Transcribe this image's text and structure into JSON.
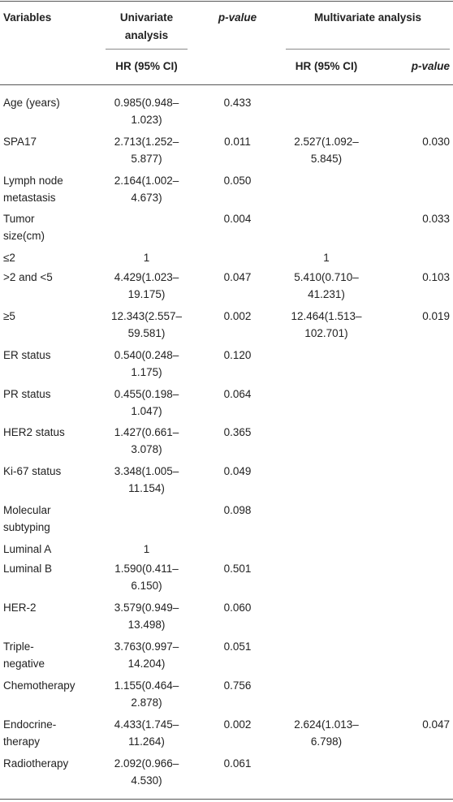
{
  "headers": {
    "variables": "Variables",
    "univariate": [
      "Univariate",
      "analysis"
    ],
    "p_value_1": "p-value",
    "multivariate": "Multivariate analysis",
    "hr_ci_uni": "HR (95% CI)",
    "hr_ci_multi": "HR (95% CI)",
    "p_value_2": "p-value"
  },
  "rows": [
    {
      "label": [
        "Age (years)"
      ],
      "uni": [
        "0.985(0.948–",
        "1.023)"
      ],
      "p1": "0.433",
      "mv": [],
      "p2": ""
    },
    {
      "label": [
        "SPA17"
      ],
      "uni": [
        "2.713(1.252–",
        "5.877)"
      ],
      "p1": "0.011",
      "mv": [
        "2.527(1.092–",
        "5.845)"
      ],
      "p2": "0.030"
    },
    {
      "label": [
        "Lymph node",
        "metastasis"
      ],
      "uni": [
        "2.164(1.002–",
        "4.673)"
      ],
      "p1": "0.050",
      "mv": [],
      "p2": ""
    },
    {
      "label": [
        "Tumor",
        "size(cm)"
      ],
      "uni": [],
      "p1": "0.004",
      "mv": [],
      "p2": "0.033"
    },
    {
      "label": [
        "≤2"
      ],
      "uni": [
        "1"
      ],
      "p1": "",
      "mv": [
        "1"
      ],
      "p2": ""
    },
    {
      "label": [
        ">2 and <5"
      ],
      "uni": [
        "4.429(1.023–",
        "19.175)"
      ],
      "p1": "0.047",
      "mv": [
        "5.410(0.710–",
        "41.231)"
      ],
      "p2": "0.103"
    },
    {
      "label": [
        "≥5"
      ],
      "uni": [
        "12.343(2.557–",
        "59.581)"
      ],
      "p1": "0.002",
      "mv": [
        "12.464(1.513–",
        "102.701)"
      ],
      "p2": "0.019"
    },
    {
      "label": [
        "ER status"
      ],
      "uni": [
        "0.540(0.248–",
        "1.175)"
      ],
      "p1": "0.120",
      "mv": [],
      "p2": ""
    },
    {
      "label": [
        "PR status"
      ],
      "uni": [
        "0.455(0.198–",
        "1.047)"
      ],
      "p1": "0.064",
      "mv": [],
      "p2": ""
    },
    {
      "label": [
        "HER2 status"
      ],
      "uni": [
        "1.427(0.661–",
        "3.078)"
      ],
      "p1": "0.365",
      "mv": [],
      "p2": ""
    },
    {
      "label": [
        "Ki-67 status"
      ],
      "uni": [
        "3.348(1.005–",
        "11.154)"
      ],
      "p1": "0.049",
      "mv": [],
      "p2": ""
    },
    {
      "label": [
        "Molecular",
        "subtyping"
      ],
      "uni": [],
      "p1": "0.098",
      "mv": [],
      "p2": ""
    },
    {
      "label": [
        "Luminal A"
      ],
      "uni": [
        "1"
      ],
      "p1": "",
      "mv": [],
      "p2": ""
    },
    {
      "label": [
        "Luminal B"
      ],
      "uni": [
        "1.590(0.411–",
        "6.150)"
      ],
      "p1": "0.501",
      "mv": [],
      "p2": ""
    },
    {
      "label": [
        "HER-2"
      ],
      "uni": [
        "3.579(0.949–",
        "13.498)"
      ],
      "p1": "0.060",
      "mv": [],
      "p2": ""
    },
    {
      "label": [
        "Triple-",
        "negative"
      ],
      "uni": [
        "3.763(0.997–",
        "14.204)"
      ],
      "p1": "0.051",
      "mv": [],
      "p2": ""
    },
    {
      "label": [
        "Chemotherapy"
      ],
      "uni": [
        "1.155(0.464–",
        "2.878)"
      ],
      "p1": "0.756",
      "mv": [],
      "p2": ""
    },
    {
      "label": [
        "Endocrine-",
        "therapy"
      ],
      "uni": [
        "4.433(1.745–",
        "11.264)"
      ],
      "p1": "0.002",
      "mv": [
        "2.624(1.013–",
        "6.798)"
      ],
      "p2": "0.047"
    },
    {
      "label": [
        "Radiotherapy"
      ],
      "uni": [
        "2.092(0.966–",
        "4.530)"
      ],
      "p1": "0.061",
      "mv": [],
      "p2": ""
    }
  ]
}
